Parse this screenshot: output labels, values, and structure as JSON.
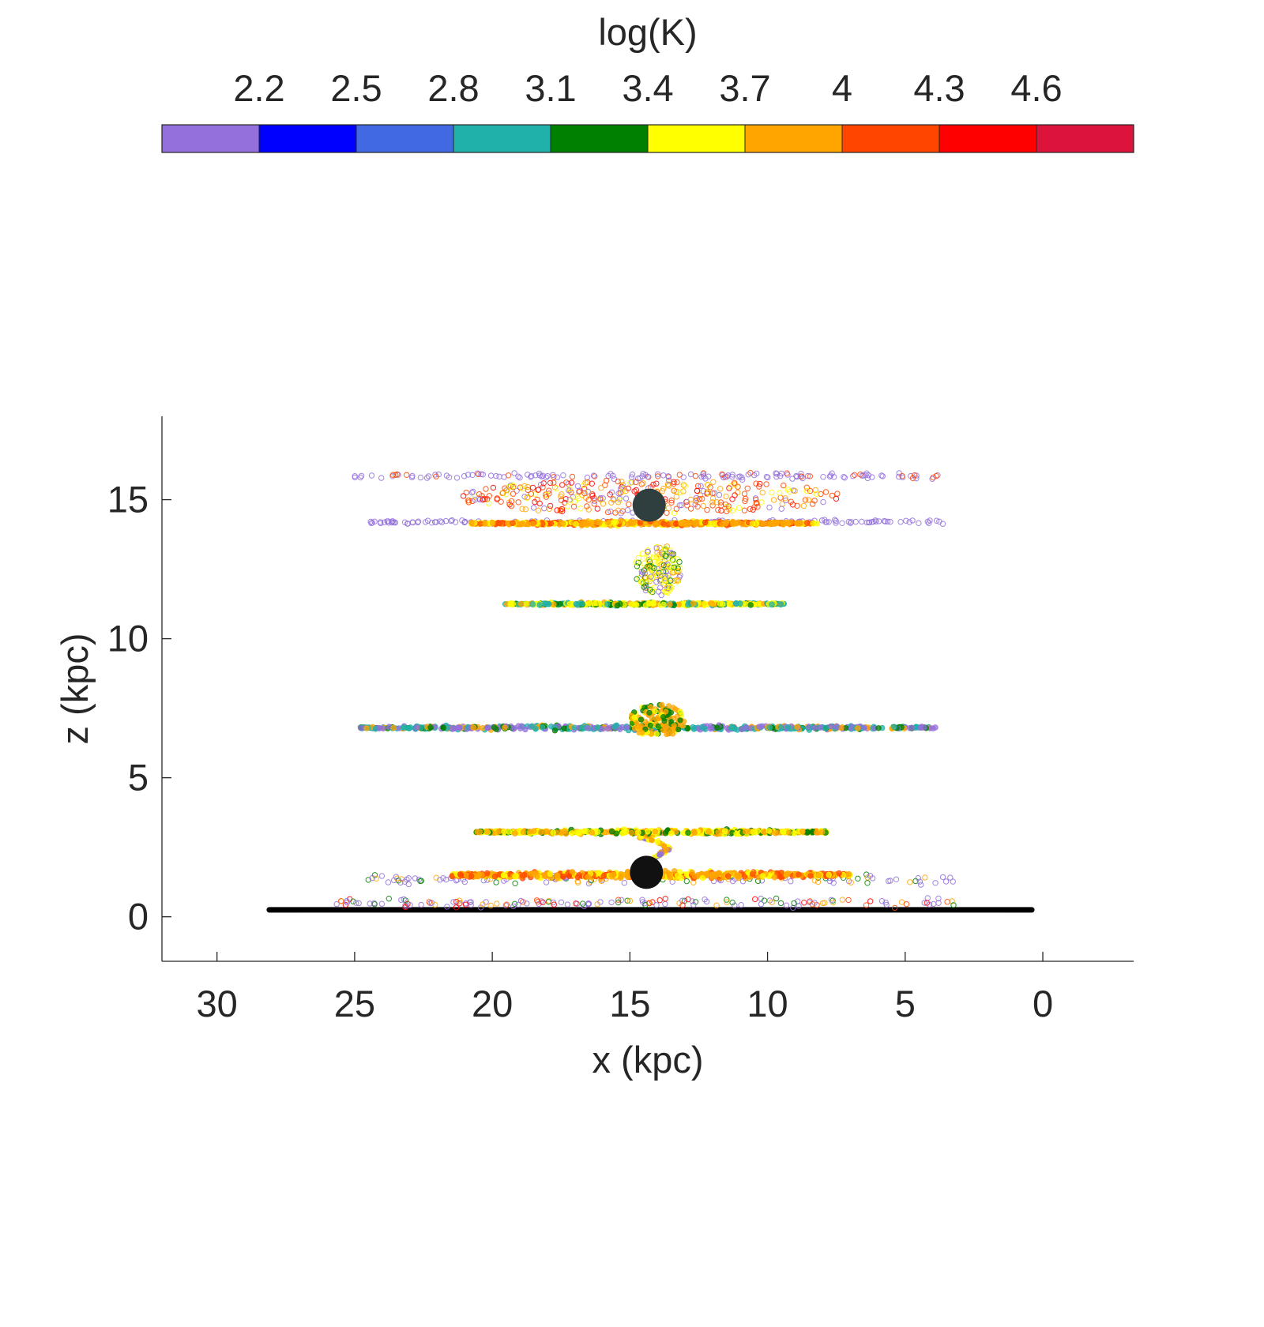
{
  "chart_data": {
    "type": "scatter",
    "title": "",
    "xlabel": "x (kpc)",
    "ylabel": "z (kpc)",
    "xlim": [
      -3.3,
      32
    ],
    "ylim": [
      -1.6,
      18
    ],
    "x_reversed": true,
    "x_ticks": [
      30,
      25,
      20,
      15,
      10,
      5,
      0
    ],
    "y_ticks": [
      0,
      5,
      10,
      15
    ],
    "grid": false,
    "colorbar": {
      "label": "log(K)",
      "placement": "top",
      "min": 1.9,
      "max": 4.9,
      "tick_values": [
        2.2,
        2.5,
        2.8,
        3.1,
        3.4,
        3.7,
        4,
        4.3,
        4.6
      ],
      "tick_labels": [
        "2.2",
        "2.5",
        "2.8",
        "3.1",
        "3.4",
        "3.7",
        "4",
        "4.3",
        "4.6"
      ],
      "colors": [
        "#9370DB",
        "#0000FF",
        "#4169E1",
        "#20B2AA",
        "#008000",
        "#FFFF00",
        "#FFA500",
        "#FF4500",
        "#FF0000",
        "#DC143C"
      ]
    },
    "series": [
      {
        "kind": "line",
        "x0": 28.1,
        "x1": 0.4,
        "z": 0.25,
        "color": "#000000"
      },
      {
        "kind": "layer",
        "x0": 25.7,
        "x1": 3.2,
        "z": 0.5,
        "spread": 0.12,
        "n": 150,
        "dominant": "#9370DB",
        "mix": [
          "#9370DB",
          "#9370DB",
          "#9370DB",
          "#008000",
          "#FFA500",
          "#FF4500",
          "#FF0000"
        ],
        "open": true
      },
      {
        "kind": "layer",
        "x0": 24.9,
        "x1": 3.2,
        "z": 1.35,
        "spread": 0.12,
        "n": 120,
        "dominant": "#9370DB",
        "mix": [
          "#9370DB",
          "#9370DB",
          "#9370DB",
          "#008000",
          "#FFA500"
        ],
        "open": true
      },
      {
        "kind": "disk",
        "x0": 21.5,
        "x1": 7.0,
        "z": 1.5,
        "thick": 0.18,
        "n": 500,
        "mix": [
          "#FFA500",
          "#FFA500",
          "#FF4500",
          "#FFFF00"
        ]
      },
      {
        "kind": "stream",
        "x": [
          14.6,
          14.0,
          13.6,
          14.0,
          14.7,
          14.2,
          13.8
        ],
        "z": [
          1.9,
          2.2,
          2.45,
          2.7,
          2.85,
          2.95,
          3.05
        ],
        "n": 80,
        "mix": [
          "#FFFF00",
          "#FFA500",
          "#9370DB"
        ]
      },
      {
        "kind": "disk",
        "x0": 20.6,
        "x1": 7.8,
        "z": 3.05,
        "thick": 0.12,
        "n": 420,
        "mix": [
          "#FFFF00",
          "#FFFF00",
          "#FFA500",
          "#FFA500",
          "#008000"
        ]
      },
      {
        "kind": "disk",
        "x0": 24.8,
        "x1": 3.9,
        "z": 6.8,
        "thick": 0.12,
        "n": 520,
        "mix": [
          "#9370DB",
          "#9370DB",
          "#20B2AA",
          "#20B2AA",
          "#008000",
          "#FFA500"
        ]
      },
      {
        "kind": "blob",
        "x": 14.0,
        "z": 7.05,
        "rx": 1.0,
        "rz": 0.6,
        "n": 150,
        "mix": [
          "#FFA500",
          "#FFA500",
          "#FFFF00",
          "#008000"
        ]
      },
      {
        "kind": "disk",
        "x0": 19.6,
        "x1": 9.4,
        "z": 11.25,
        "thick": 0.08,
        "n": 360,
        "mix": [
          "#FFFF00",
          "#FFFF00",
          "#FFFF00",
          "#008000",
          "#20B2AA",
          "#FFA500"
        ]
      },
      {
        "kind": "blob",
        "x": 14.0,
        "z": 12.5,
        "rx": 0.85,
        "rz": 0.95,
        "n": 170,
        "mix": [
          "#FFFF00",
          "#FFA500",
          "#FFFF00",
          "#9370DB",
          "#008000"
        ],
        "open": true
      },
      {
        "kind": "layer",
        "x0": 24.6,
        "x1": 3.6,
        "z": 14.2,
        "spread": 0.05,
        "n": 140,
        "dominant": "#9370DB",
        "mix": [
          "#9370DB",
          "#9370DB",
          "#9370DB"
        ],
        "open": true
      },
      {
        "kind": "disk",
        "x0": 20.8,
        "x1": 8.2,
        "z": 14.15,
        "thick": 0.1,
        "n": 460,
        "mix": [
          "#FFA500",
          "#FFA500",
          "#FF4500",
          "#FFFF00"
        ]
      },
      {
        "kind": "layer",
        "x0": 25.0,
        "x1": 3.7,
        "z": 15.85,
        "spread": 0.08,
        "n": 150,
        "dominant": "#9370DB",
        "mix": [
          "#9370DB",
          "#9370DB",
          "#9370DB",
          "#FF4500"
        ],
        "open": true
      },
      {
        "kind": "blob",
        "x": 14.3,
        "z": 15.1,
        "rx": 7.0,
        "rz": 0.6,
        "n": 330,
        "mix": [
          "#FF4500",
          "#FF0000",
          "#FFA500",
          "#9370DB",
          "#FF4500",
          "#FFFF00"
        ],
        "open": true
      }
    ],
    "black_holes": [
      {
        "x": 14.3,
        "z": 14.8,
        "color": "#2F3F40"
      },
      {
        "x": 14.4,
        "z": 1.6,
        "color": "#111111"
      }
    ]
  }
}
